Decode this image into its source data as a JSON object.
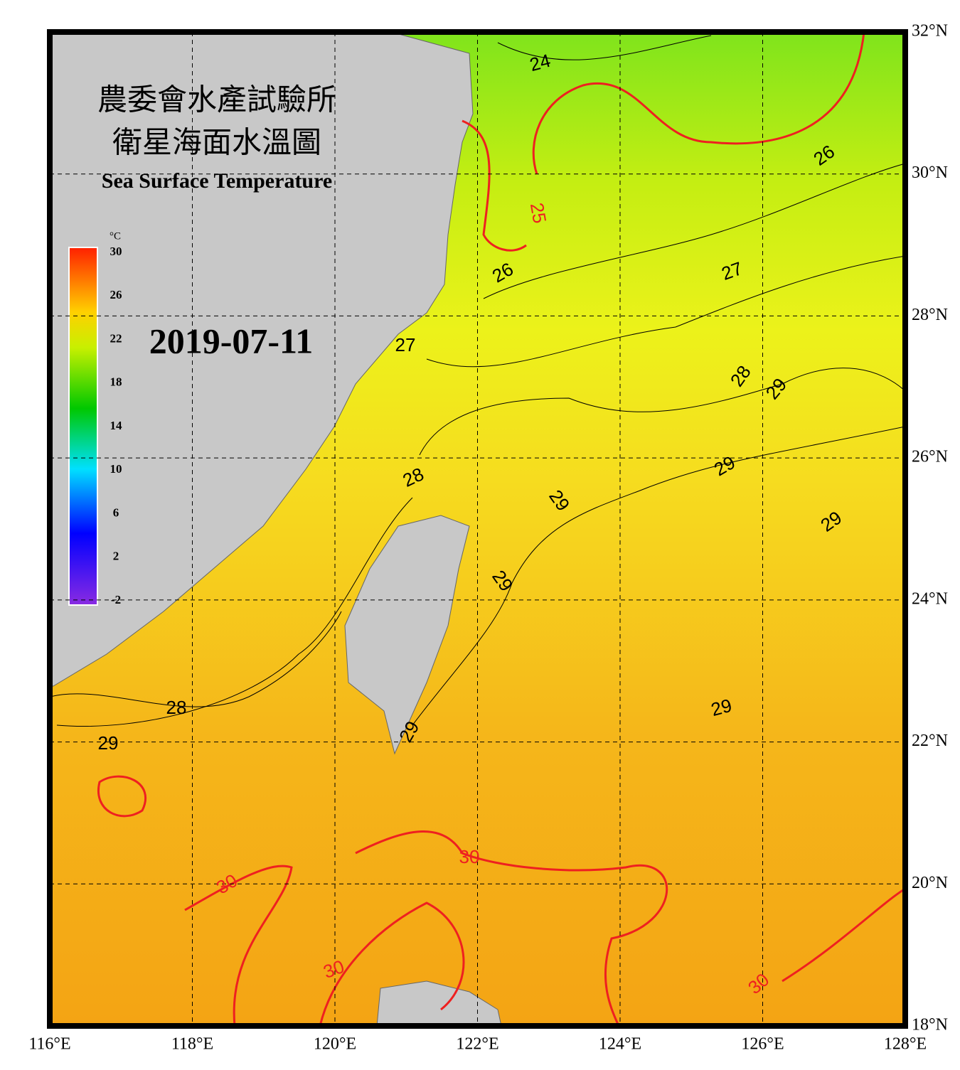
{
  "header": {
    "title_zh_1": "農委會水產試驗所",
    "title_zh_2": "衛星海面水溫圖",
    "title_en": "Sea Surface Temperature",
    "date": "2019-07-11"
  },
  "colorbar": {
    "unit": "°C",
    "range": [
      -2,
      30
    ],
    "ticks": [
      30,
      26,
      22,
      18,
      14,
      10,
      6,
      2,
      -2
    ]
  },
  "map": {
    "lon_range": [
      116,
      128
    ],
    "lat_range": [
      18,
      32
    ],
    "lon_ticks": [
      {
        "value": 116,
        "label": "116°E"
      },
      {
        "value": 118,
        "label": "118°E"
      },
      {
        "value": 120,
        "label": "120°E"
      },
      {
        "value": 122,
        "label": "122°E"
      },
      {
        "value": 124,
        "label": "124°E"
      },
      {
        "value": 126,
        "label": "126°E"
      },
      {
        "value": 128,
        "label": "128°E"
      }
    ],
    "lat_ticks": [
      {
        "value": 32,
        "label": "32°N"
      },
      {
        "value": 30,
        "label": "30°N"
      },
      {
        "value": 28,
        "label": "28°N"
      },
      {
        "value": 26,
        "label": "26°N"
      },
      {
        "value": 24,
        "label": "24°N"
      },
      {
        "value": 22,
        "label": "22°N"
      },
      {
        "value": 20,
        "label": "20°N"
      },
      {
        "value": 18,
        "label": "18°N"
      }
    ],
    "contour_labels": [
      24,
      25,
      26,
      26,
      27,
      27,
      28,
      29,
      29,
      28,
      29,
      29,
      29,
      28,
      29,
      29,
      29,
      30,
      30,
      30,
      30
    ]
  }
}
